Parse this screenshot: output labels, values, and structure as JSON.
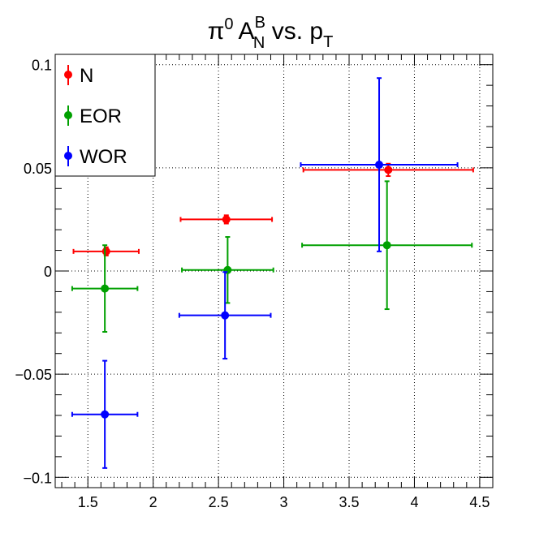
{
  "chart_data": {
    "type": "scatter",
    "title": {
      "base": "π",
      "base_sup": "0",
      "quantity": "A",
      "quantity_sup": "B",
      "quantity_sub": "N",
      "middle": " vs. p",
      "end_sub": "T"
    },
    "xlabel": "",
    "ylabel": "",
    "xlim": [
      1.25,
      4.6
    ],
    "ylim": [
      -0.105,
      0.105
    ],
    "x_major_ticks": [
      1.5,
      2,
      2.5,
      3,
      3.5,
      4,
      4.5
    ],
    "x_tick_labels": [
      "1.5",
      "2",
      "2.5",
      "3",
      "3.5",
      "4",
      "4.5"
    ],
    "y_major_ticks": [
      -0.1,
      -0.05,
      0,
      0.05,
      0.1
    ],
    "y_tick_labels": [
      "−0.1",
      "−0.05",
      "0",
      "0.05",
      "0.1"
    ],
    "grid": true,
    "legend_position": "top-left",
    "series": [
      {
        "name": "N",
        "color": "#ff0000",
        "points": [
          {
            "x": 1.64,
            "y": 0.0095,
            "xerr": 0.25,
            "yerr": 0.002
          },
          {
            "x": 2.56,
            "y": 0.025,
            "xerr": 0.35,
            "yerr": 0.002
          },
          {
            "x": 3.8,
            "y": 0.049,
            "xerr": 0.65,
            "yerr": 0.003
          }
        ]
      },
      {
        "name": "EOR",
        "color": "#00a000",
        "points": [
          {
            "x": 1.63,
            "y": -0.0085,
            "xerr": 0.25,
            "yerr": 0.021
          },
          {
            "x": 2.57,
            "y": 0.0005,
            "xerr": 0.35,
            "yerr": 0.016
          },
          {
            "x": 3.79,
            "y": 0.0125,
            "xerr": 0.65,
            "yerr": 0.031
          }
        ]
      },
      {
        "name": "WOR",
        "color": "#0000ff",
        "points": [
          {
            "x": 1.63,
            "y": -0.0695,
            "xerr": 0.25,
            "yerr": 0.026
          },
          {
            "x": 2.55,
            "y": -0.0215,
            "xerr": 0.35,
            "yerr": 0.021
          },
          {
            "x": 3.73,
            "y": 0.0515,
            "xerr": 0.6,
            "yerr": 0.042
          }
        ]
      }
    ]
  }
}
